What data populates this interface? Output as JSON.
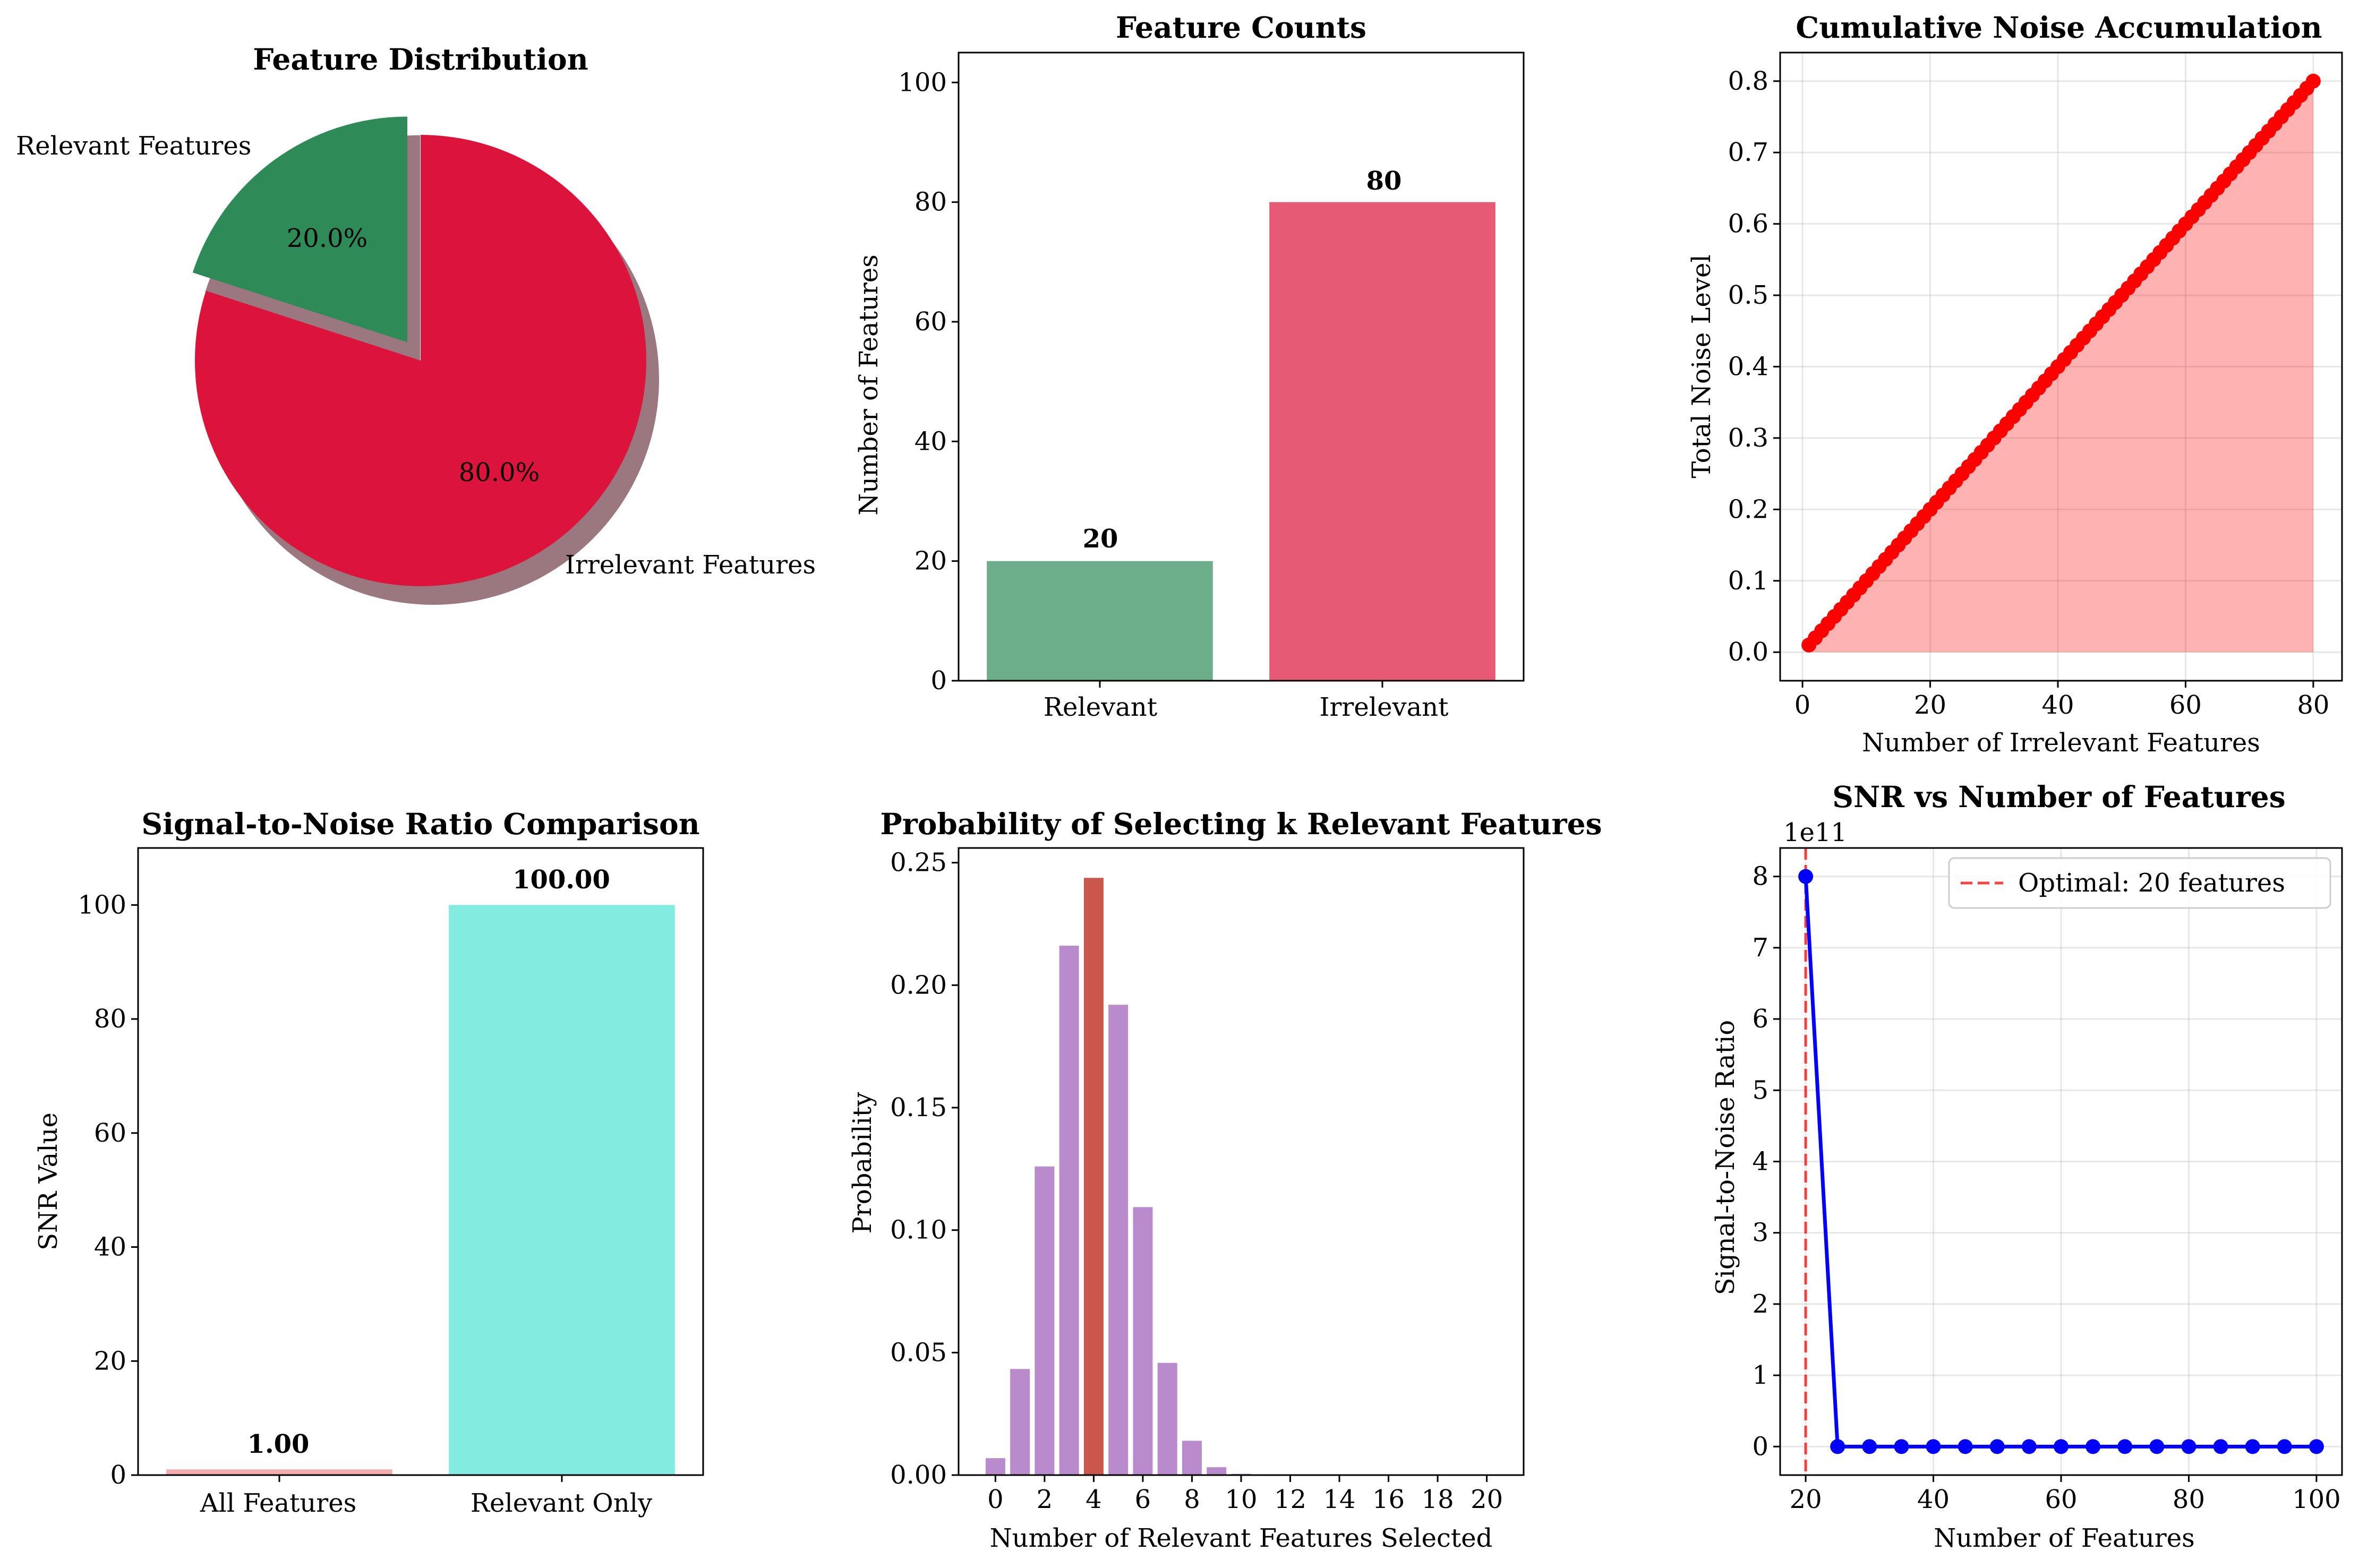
{
  "charts": {
    "pie": {
      "title": "Feature Distribution",
      "slice_labels": [
        "Relevant Features",
        "Irrelevant Features"
      ],
      "pct_labels": [
        "20.0%",
        "80.0%"
      ]
    },
    "counts": {
      "title": "Feature Counts",
      "ylabel": "Number of Features",
      "categories": [
        "Relevant",
        "Irrelevant"
      ],
      "value_labels": [
        "20",
        "80"
      ],
      "yticks": [
        "0",
        "20",
        "40",
        "60",
        "80",
        "100"
      ]
    },
    "noise": {
      "title": "Cumulative Noise Accumulation",
      "xlabel": "Number of Irrelevant Features",
      "ylabel": "Total Noise Level",
      "xticks": [
        "0",
        "20",
        "40",
        "60",
        "80"
      ],
      "yticks": [
        "0.0",
        "0.1",
        "0.2",
        "0.3",
        "0.4",
        "0.5",
        "0.6",
        "0.7",
        "0.8"
      ]
    },
    "snrbar": {
      "title": "Signal-to-Noise Ratio Comparison",
      "ylabel": "SNR Value",
      "categories": [
        "All Features",
        "Relevant Only"
      ],
      "value_labels": [
        "1.00",
        "100.00"
      ],
      "yticks": [
        "0",
        "20",
        "40",
        "60",
        "80",
        "100"
      ]
    },
    "prob": {
      "title": "Probability of Selecting k Relevant Features",
      "xlabel": "Number of Relevant Features Selected",
      "ylabel": "Probability",
      "xticks": [
        "0",
        "2",
        "4",
        "6",
        "8",
        "10",
        "12",
        "14",
        "16",
        "18",
        "20"
      ],
      "yticks": [
        "0.00",
        "0.05",
        "0.10",
        "0.15",
        "0.20",
        "0.25"
      ]
    },
    "snrline": {
      "title": "SNR vs Number of Features",
      "xlabel": "Number of Features",
      "ylabel": "Signal-to-Noise Ratio",
      "offset_text": "1e11",
      "legend": "Optimal: 20 features",
      "xticks": [
        "20",
        "40",
        "60",
        "80",
        "100"
      ],
      "yticks": [
        "0",
        "1",
        "2",
        "3",
        "4",
        "5",
        "6",
        "7",
        "8"
      ]
    }
  },
  "colors": {
    "green": "#2e8b57",
    "crimson": "#dc143c",
    "red": "#ff0000",
    "salmon": "#f08080",
    "turquoise": "#40e0d0",
    "purple": "#9b59b6",
    "highlight": "#c0392b",
    "blue": "#0000ff"
  },
  "chart_data": [
    {
      "type": "pie",
      "title": "Feature Distribution",
      "labels": [
        "Relevant Features",
        "Irrelevant Features"
      ],
      "values": [
        20,
        80
      ],
      "percent_labels": [
        "20.0%",
        "80.0%"
      ],
      "exploded": "Relevant Features",
      "shadow": true,
      "colors": [
        "#2e8b57",
        "#dc143c"
      ]
    },
    {
      "type": "bar",
      "title": "Feature Counts",
      "categories": [
        "Relevant",
        "Irrelevant"
      ],
      "values": [
        20,
        80
      ],
      "ylabel": "Number of Features",
      "ylim": [
        0,
        105
      ],
      "colors": [
        "#2e8b57",
        "#dc143c"
      ]
    },
    {
      "type": "area",
      "title": "Cumulative Noise Accumulation",
      "xlabel": "Number of Irrelevant Features",
      "ylabel": "Total Noise Level",
      "x_range": [
        1,
        80
      ],
      "y_per_feature": 0.01,
      "xlim": [
        -3.5,
        84.5
      ],
      "ylim": [
        -0.04,
        0.84
      ],
      "grid": true,
      "color": "#ff0000"
    },
    {
      "type": "bar",
      "title": "Signal-to-Noise Ratio Comparison",
      "categories": [
        "All Features",
        "Relevant Only"
      ],
      "values": [
        1.0,
        100.0
      ],
      "ylabel": "SNR Value",
      "ylim": [
        0,
        110
      ],
      "colors": [
        "#f08080",
        "#40e0d0"
      ]
    },
    {
      "type": "bar",
      "title": "Probability of Selecting k Relevant Features",
      "xlabel": "Number of Relevant Features Selected",
      "ylabel": "Probability",
      "x": [
        0,
        1,
        2,
        3,
        4,
        5,
        6,
        7,
        8,
        9,
        10,
        11,
        12,
        13,
        14,
        15,
        16,
        17,
        18,
        19,
        20
      ],
      "values": [
        0.0069,
        0.0433,
        0.126,
        0.2161,
        0.2438,
        0.192,
        0.1094,
        0.0458,
        0.014,
        0.0032,
        0.0005,
        0.0001,
        0,
        0,
        0,
        0,
        0,
        0,
        0,
        0,
        0
      ],
      "highlighted_x": 4,
      "ylim": [
        0,
        0.256
      ],
      "colors": [
        "#9b59b6",
        "#c0392b"
      ]
    },
    {
      "type": "line",
      "title": "SNR vs Number of Features",
      "xlabel": "Number of Features",
      "ylabel": "Signal-to-Noise Ratio",
      "y_scale_factor": "1e11",
      "x": [
        20,
        25,
        30,
        35,
        40,
        45,
        50,
        55,
        60,
        65,
        70,
        75,
        80,
        85,
        90,
        95,
        100
      ],
      "values": [
        8.0,
        0,
        0,
        0,
        0,
        0,
        0,
        0,
        0,
        0,
        0,
        0,
        0,
        0,
        0,
        0,
        0
      ],
      "reference_line": {
        "x": 20,
        "label": "Optimal: 20 features"
      },
      "xlim": [
        16,
        104
      ],
      "ylim": [
        -0.4,
        8.4
      ],
      "grid": true,
      "legend": "top-right",
      "color": "#0000ff"
    }
  ]
}
